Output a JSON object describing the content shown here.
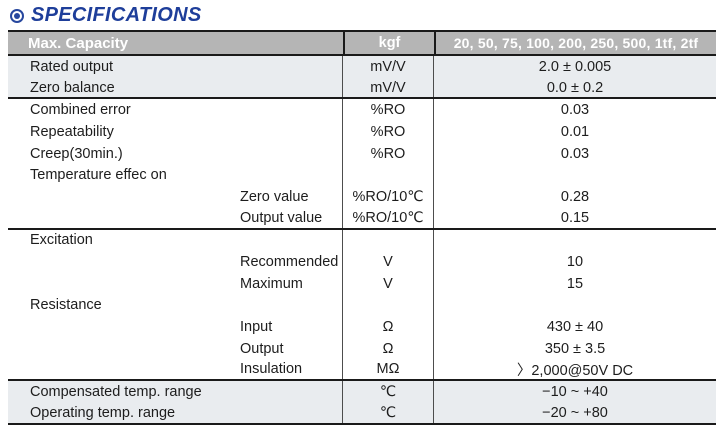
{
  "page": {
    "title": "SPECIFICATIONS"
  },
  "table": {
    "header": {
      "parameter": "Max. Capacity",
      "unit": "kgf",
      "values": "20, 50, 75, 100, 200, 250, 500, 1tf, 2tf"
    },
    "rows": [
      {
        "label": "Rated output",
        "unit": "mV/V",
        "value": "2.0 ± 0.005",
        "indent": false,
        "tinted": true,
        "group_end": false
      },
      {
        "label": "Zero balance",
        "unit": "mV/V",
        "value": "0.0 ± 0.2",
        "indent": false,
        "tinted": true,
        "group_end": true
      },
      {
        "label": "Combined error",
        "unit": "%RO",
        "value": "0.03",
        "indent": false,
        "tinted": false,
        "group_end": false
      },
      {
        "label": "Repeatability",
        "unit": "%RO",
        "value": "0.01",
        "indent": false,
        "tinted": false,
        "group_end": false
      },
      {
        "label": "Creep(30min.)",
        "unit": "%RO",
        "value": "0.03",
        "indent": false,
        "tinted": false,
        "group_end": false
      },
      {
        "label": "Temperature effec on",
        "unit": "",
        "value": "",
        "indent": false,
        "tinted": false,
        "group_end": false
      },
      {
        "label": "Zero value",
        "unit": "%RO/10℃",
        "value": "0.28",
        "indent": true,
        "tinted": false,
        "group_end": false
      },
      {
        "label": "Output value",
        "unit": "%RO/10℃",
        "value": "0.15",
        "indent": true,
        "tinted": false,
        "group_end": true
      },
      {
        "label": "Excitation",
        "unit": "",
        "value": "",
        "indent": false,
        "tinted": false,
        "group_end": false
      },
      {
        "label": "Recommended",
        "unit": "V",
        "value": "10",
        "indent": true,
        "tinted": false,
        "group_end": false
      },
      {
        "label": "Maximum",
        "unit": "V",
        "value": "15",
        "indent": true,
        "tinted": false,
        "group_end": false
      },
      {
        "label": "Resistance",
        "unit": "",
        "value": "",
        "indent": false,
        "tinted": false,
        "group_end": false
      },
      {
        "label": "Input",
        "unit": "Ω",
        "value": "430 ± 40",
        "indent": true,
        "tinted": false,
        "group_end": false
      },
      {
        "label": "Output",
        "unit": "Ω",
        "value": "350 ± 3.5",
        "indent": true,
        "tinted": false,
        "group_end": false
      },
      {
        "label": "Insulation",
        "unit": "MΩ",
        "value": "〉2,000@50V DC",
        "indent": true,
        "tinted": false,
        "group_end": true
      },
      {
        "label": "Compensated temp. range",
        "unit": "℃",
        "value": "−10 ~ +40",
        "indent": false,
        "tinted": true,
        "group_end": false
      },
      {
        "label": "Operating temp. range",
        "unit": "℃",
        "value": "−20 ~ +80",
        "indent": false,
        "tinted": true,
        "group_end": true
      }
    ],
    "colors": {
      "header_bg": "#b5b5b5",
      "header_text": "#ffffff",
      "tint_bg": "#e9ecef",
      "border_dark": "#1a1a1a",
      "title_blue": "#1e3e9a"
    }
  }
}
